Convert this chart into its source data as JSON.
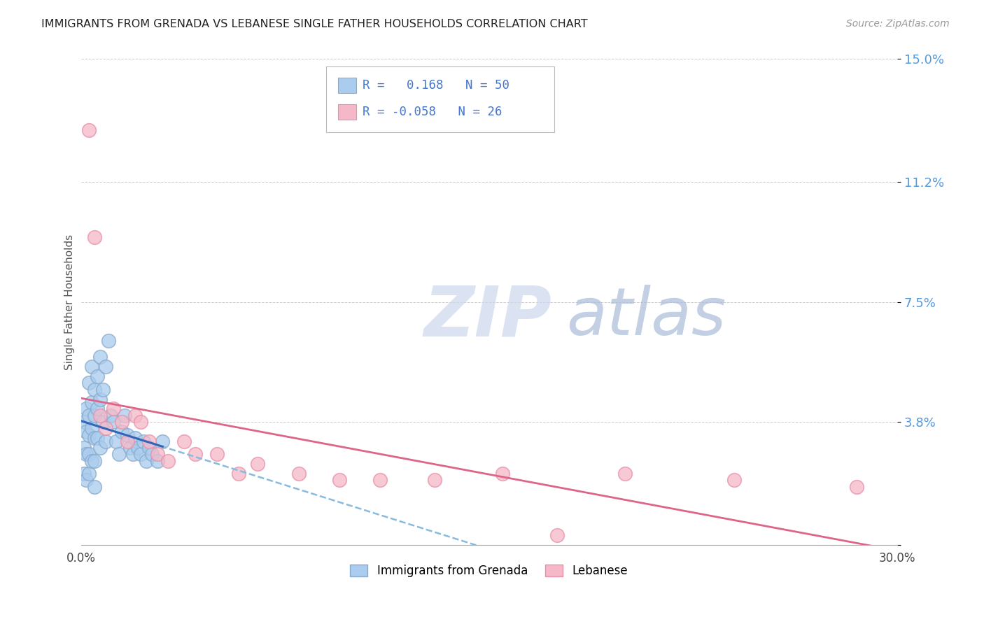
{
  "title": "IMMIGRANTS FROM GRENADA VS LEBANESE SINGLE FATHER HOUSEHOLDS CORRELATION CHART",
  "source": "Source: ZipAtlas.com",
  "ylabel_label": "Single Father Households",
  "x_min": 0.0,
  "x_max": 0.3,
  "y_min": 0.0,
  "y_max": 0.15,
  "x_ticks": [
    0.0,
    0.05,
    0.1,
    0.15,
    0.2,
    0.25,
    0.3
  ],
  "x_tick_labels": [
    "0.0%",
    "",
    "",
    "",
    "",
    "",
    "30.0%"
  ],
  "y_tick_positions": [
    0.0,
    0.038,
    0.075,
    0.112,
    0.15
  ],
  "y_tick_labels": [
    "",
    "3.8%",
    "7.5%",
    "11.2%",
    "15.0%"
  ],
  "grenada_color": "#aaccee",
  "lebanese_color": "#f5b8c8",
  "grenada_edge_color": "#88aacc",
  "lebanese_edge_color": "#e890a8",
  "trend_grenada_solid_color": "#3366bb",
  "trend_grenada_dash_color": "#88bbdd",
  "trend_lebanese_color": "#dd6688",
  "r_grenada": 0.168,
  "n_grenada": 50,
  "r_lebanese": -0.058,
  "n_lebanese": 26,
  "watermark_zip_color": "#c8d8ee",
  "watermark_atlas_color": "#aabbdd",
  "legend_label_grenada": "Immigrants from Grenada",
  "legend_label_lebanese": "Lebanese",
  "grenada_x": [
    0.001,
    0.001,
    0.001,
    0.002,
    0.002,
    0.002,
    0.002,
    0.003,
    0.003,
    0.003,
    0.003,
    0.003,
    0.004,
    0.004,
    0.004,
    0.004,
    0.005,
    0.005,
    0.005,
    0.005,
    0.005,
    0.006,
    0.006,
    0.006,
    0.007,
    0.007,
    0.007,
    0.008,
    0.008,
    0.009,
    0.009,
    0.01,
    0.011,
    0.012,
    0.013,
    0.014,
    0.015,
    0.016,
    0.017,
    0.018,
    0.019,
    0.02,
    0.021,
    0.022,
    0.023,
    0.024,
    0.025,
    0.026,
    0.028,
    0.03
  ],
  "grenada_y": [
    0.038,
    0.03,
    0.022,
    0.042,
    0.035,
    0.028,
    0.02,
    0.05,
    0.04,
    0.034,
    0.028,
    0.022,
    0.055,
    0.044,
    0.036,
    0.026,
    0.048,
    0.04,
    0.033,
    0.026,
    0.018,
    0.052,
    0.042,
    0.033,
    0.058,
    0.045,
    0.03,
    0.048,
    0.038,
    0.055,
    0.032,
    0.063,
    0.04,
    0.038,
    0.032,
    0.028,
    0.035,
    0.04,
    0.034,
    0.03,
    0.028,
    0.033,
    0.03,
    0.028,
    0.032,
    0.026,
    0.03,
    0.028,
    0.026,
    0.032
  ],
  "lebanese_x": [
    0.003,
    0.005,
    0.007,
    0.009,
    0.012,
    0.015,
    0.017,
    0.02,
    0.022,
    0.025,
    0.028,
    0.032,
    0.038,
    0.042,
    0.05,
    0.058,
    0.065,
    0.08,
    0.095,
    0.11,
    0.13,
    0.155,
    0.175,
    0.2,
    0.24,
    0.285
  ],
  "lebanese_y": [
    0.128,
    0.095,
    0.04,
    0.036,
    0.042,
    0.038,
    0.032,
    0.04,
    0.038,
    0.032,
    0.028,
    0.026,
    0.032,
    0.028,
    0.028,
    0.022,
    0.025,
    0.022,
    0.02,
    0.02,
    0.02,
    0.022,
    0.003,
    0.022,
    0.02,
    0.018
  ]
}
